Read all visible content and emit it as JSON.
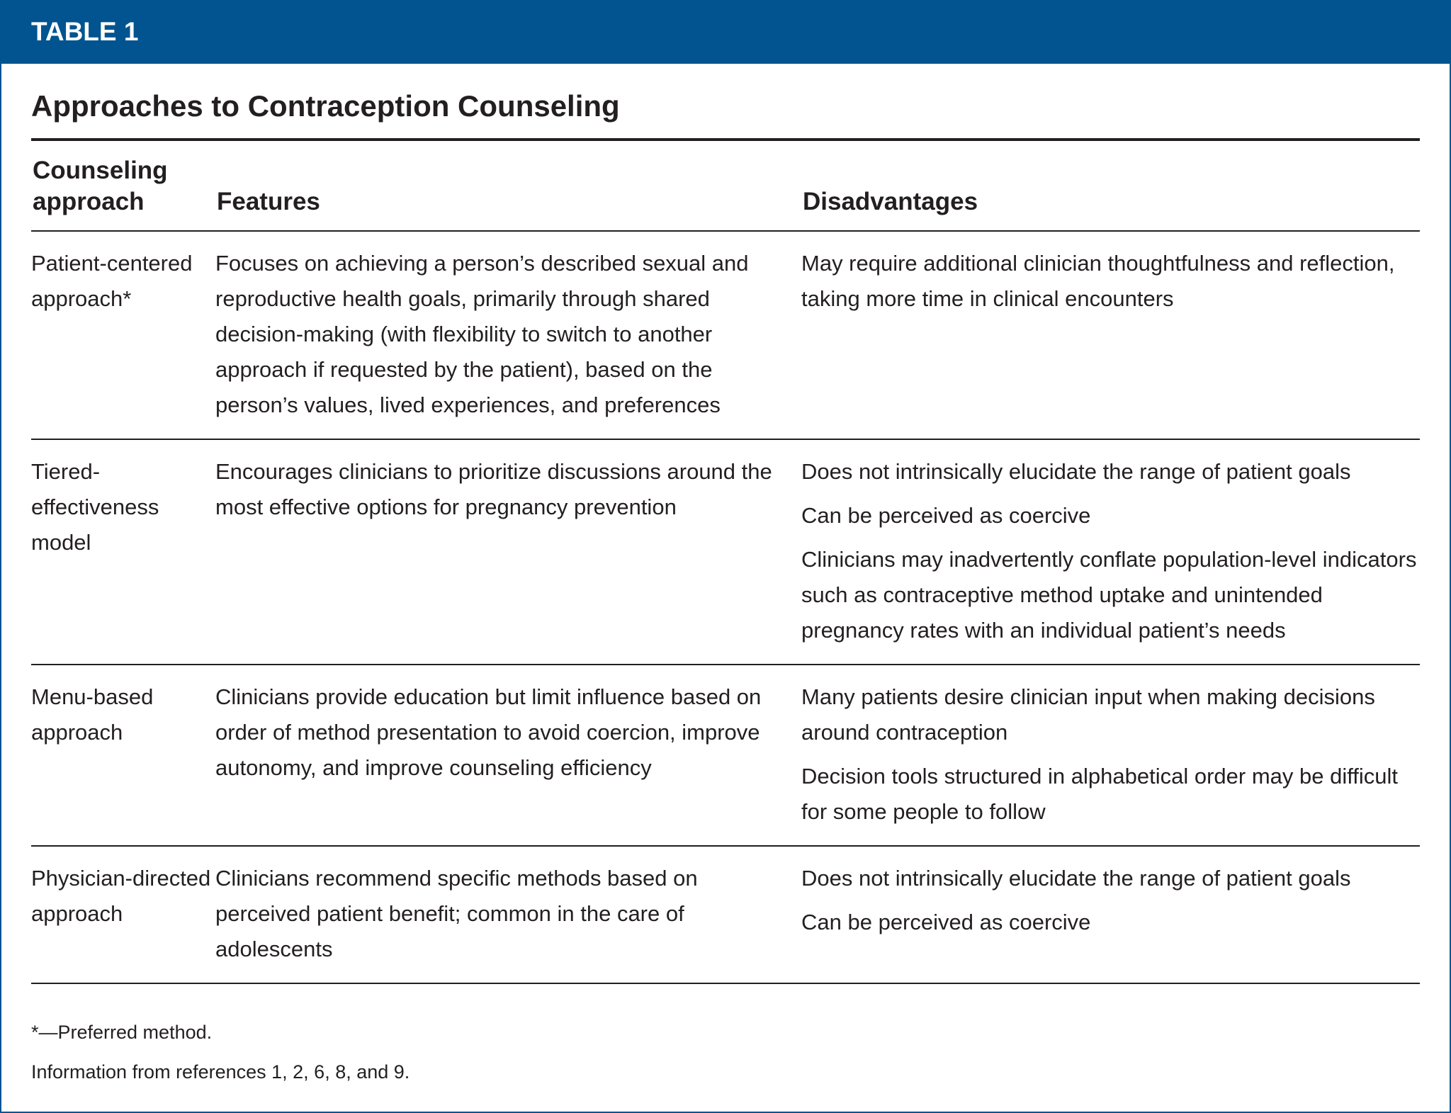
{
  "label": "TABLE 1",
  "title": "Approaches to Contraception Counseling",
  "colors": {
    "band": "#01548f",
    "text": "#231f20"
  },
  "headers": [
    "Counseling approach",
    "Features",
    "Disadvantages"
  ],
  "rows": [
    {
      "approach": "Patient-centered approach*",
      "features": "Focuses on achieving a person’s described sexual and reproductive health goals, primarily through shared decision-making (with flexibility to switch to another approach if requested by the patient), based on the person’s values, lived experiences, and preferences",
      "disadvantages": [
        "May require additional clinician thoughtfulness and reflection, taking more time in clinical encounters"
      ]
    },
    {
      "approach": "Tiered-effectiveness model",
      "features": "Encourages clinicians to prioritize discussions around the most effective options for pregnancy prevention",
      "disadvantages": [
        "Does not intrinsically elucidate the range of patient goals",
        "Can be perceived as coercive",
        "Clinicians may inadvertently conflate population-level indicators such as contraceptive method uptake and unintended pregnancy rates with an individual patient’s needs"
      ]
    },
    {
      "approach": "Menu-based approach",
      "features": "Clinicians provide education but limit influence based on order of method presentation to avoid coercion, improve autonomy, and improve counseling efficiency",
      "disadvantages": [
        "Many patients desire clinician input when making decisions around contraception",
        "Decision tools structured in alphabetical order may be difficult for some people to follow"
      ]
    },
    {
      "approach": "Physician-directed approach",
      "features": "Clinicians recommend specific methods based on perceived patient benefit; common in the care of adolescents",
      "disadvantages": [
        "Does not intrinsically elucidate the range of patient goals",
        "Can be perceived as coercive"
      ]
    }
  ],
  "footnotes": [
    "*—Preferred method.",
    "Information from references 1, 2, 6, 8, and 9."
  ]
}
